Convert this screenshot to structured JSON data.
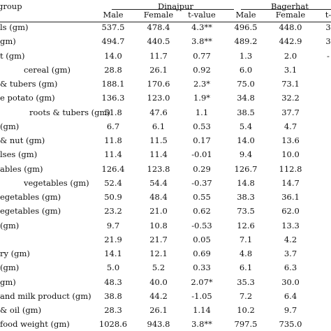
{
  "table": {
    "corner_header": "group",
    "group_headers": [
      "Dinajpur",
      "Bagerhat"
    ],
    "sub_headers": [
      "Male",
      "Female",
      "t-value",
      "Male",
      "Female",
      "t-"
    ],
    "rows": [
      {
        "label": "ls (gm)",
        "values": [
          "537.5",
          "478.4",
          "4.3**",
          "496.5",
          "448.0",
          "3"
        ]
      },
      {
        "label": "gm)",
        "values": [
          "494.7",
          "440.5",
          "3.8**",
          "489.2",
          "442.9",
          "3"
        ]
      },
      {
        "label": "t (gm)",
        "values": [
          "14.0",
          "11.7",
          "0.77",
          "1.3",
          "2.0",
          "-"
        ]
      },
      {
        "label": "cereal (gm)",
        "values": [
          "28.8",
          "26.1",
          "0.92",
          "6.0",
          "3.1",
          ""
        ]
      },
      {
        "label": "& tubers (gm)",
        "values": [
          "188.1",
          "170.6",
          "2.3*",
          "75.0",
          "73.1",
          ""
        ]
      },
      {
        "label": "e potato (gm)",
        "values": [
          "136.3",
          "123.0",
          "1.9*",
          "34.8",
          "32.2",
          ""
        ]
      },
      {
        "label": "roots & tubers (gm)",
        "values": [
          "51.8",
          "47.6",
          "1.1",
          "38.5",
          "37.7",
          ""
        ]
      },
      {
        "label": "(gm)",
        "values": [
          "6.7",
          "6.1",
          "0.53",
          "5.4",
          "4.7",
          ""
        ]
      },
      {
        "label": "& nut (gm)",
        "values": [
          "11.8",
          "11.5",
          "0.17",
          "14.0",
          "13.6",
          ""
        ]
      },
      {
        "label": "lses (gm)",
        "values": [
          "11.4",
          "11.4",
          "-0.01",
          "9.4",
          "10.0",
          ""
        ]
      },
      {
        "label": "ables (gm)",
        "values": [
          "126.4",
          "123.8",
          "0.29",
          "126.7",
          "112.8",
          ""
        ]
      },
      {
        "label": "vegetables (gm)",
        "values": [
          "52.4",
          "54.4",
          "-0.37",
          "14.8",
          "14.7",
          ""
        ]
      },
      {
        "label": "egetables (gm)",
        "values": [
          "50.9",
          "48.4",
          "0.55",
          "38.3",
          "36.1",
          ""
        ]
      },
      {
        "label": "egetables (gm)",
        "values": [
          "23.2",
          "21.0",
          "0.62",
          "73.5",
          "62.0",
          ""
        ]
      },
      {
        "label": "(gm)",
        "values": [
          "9.7",
          "10.8",
          "-0.53",
          "12.6",
          "13.3",
          ""
        ]
      },
      {
        "label": "",
        "values": [
          "21.9",
          "21.7",
          "0.05",
          "7.1",
          "4.2",
          ""
        ]
      },
      {
        "label": "ry (gm)",
        "values": [
          "14.1",
          "12.1",
          "0.69",
          "4.8",
          "3.7",
          ""
        ]
      },
      {
        "label": "(gm)",
        "values": [
          "5.0",
          "5.2",
          "0.33",
          "6.1",
          "6.3",
          ""
        ]
      },
      {
        "label": "gm)",
        "values": [
          "48.3",
          "40.0",
          "2.07*",
          "35.3",
          "30.0",
          ""
        ]
      },
      {
        "label": "and milk product (gm)",
        "values": [
          "38.8",
          "44.2",
          "-1.05",
          "7.2",
          "6.4",
          ""
        ]
      },
      {
        "label": "& oil (gm)",
        "values": [
          "28.3",
          "26.1",
          "1.14",
          "10.2",
          "9.7",
          ""
        ]
      },
      {
        "label": "food weight (gm)",
        "values": [
          "1028.6",
          "943.8",
          "3.8**",
          "797.5",
          "735.0",
          ""
        ]
      }
    ]
  }
}
